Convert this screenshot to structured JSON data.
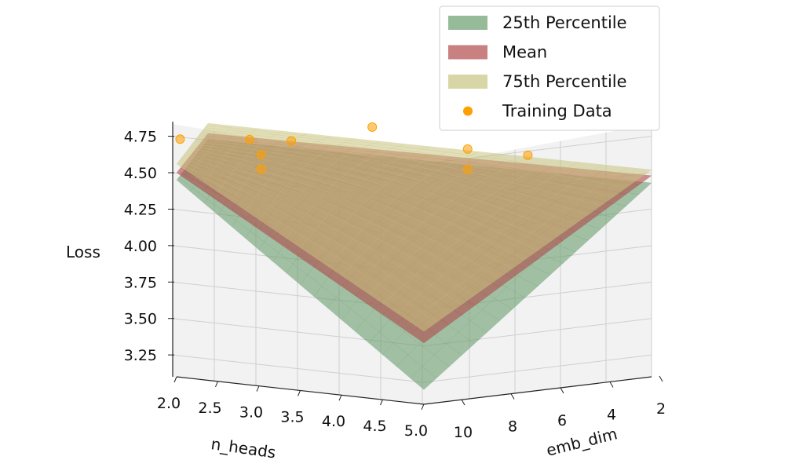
{
  "chart_data": {
    "type": "surface3d",
    "title": "",
    "zlabel": "Loss",
    "xlabel": "n_heads",
    "ylabel": "emb_dim",
    "zticks": [
      "3.25",
      "3.50",
      "3.75",
      "4.00",
      "4.25",
      "4.50",
      "4.75"
    ],
    "xticks": [
      "2.0",
      "2.5",
      "3.0",
      "3.5",
      "4.0",
      "4.5",
      "5.0"
    ],
    "yticks": [
      "10",
      "8",
      "6",
      "4",
      "2"
    ],
    "zlim": [
      3.1,
      4.85
    ],
    "xlim": [
      2.0,
      5.0
    ],
    "ylim": [
      2,
      11
    ],
    "series": [
      {
        "name": "25th Percentile",
        "color": "#6a9e6e",
        "corners": {
          "n2_e2": 4.46,
          "n5_e2": 4.43,
          "n5_e11": 3.2,
          "n2_e11": 4.45
        }
      },
      {
        "name": "Mean",
        "color": "#b04a4a",
        "corners": {
          "n2_e2": 4.5,
          "n5_e2": 4.48,
          "n5_e11": 3.52,
          "n2_e11": 4.5
        }
      },
      {
        "name": "75th Percentile",
        "color": "#c8c480",
        "corners": {
          "n2_e2": 4.57,
          "n5_e2": 4.52,
          "n5_e11": 3.6,
          "n2_e11": 4.56
        }
      }
    ],
    "training_data": {
      "name": "Training Data",
      "color": "#ff9f00",
      "points": [
        {
          "n_heads": 2.0,
          "emb_dim": 10,
          "loss": 4.7
        },
        {
          "n_heads": 2.6,
          "emb_dim": 8,
          "loss": 4.68
        },
        {
          "n_heads": 3.0,
          "emb_dim": 8,
          "loss": 4.7
        },
        {
          "n_heads": 3.5,
          "emb_dim": 6,
          "loss": 4.78
        },
        {
          "n_heads": 2.8,
          "emb_dim": 9,
          "loss": 4.62
        },
        {
          "n_heads": 2.8,
          "emb_dim": 9,
          "loss": 4.52
        },
        {
          "n_heads": 4.0,
          "emb_dim": 4,
          "loss": 4.62
        },
        {
          "n_heads": 4.0,
          "emb_dim": 4,
          "loss": 4.48
        },
        {
          "n_heads": 4.3,
          "emb_dim": 3,
          "loss": 4.58
        }
      ]
    },
    "legend": {
      "position": "top-right",
      "entries": [
        "25th Percentile",
        "Mean",
        "75th Percentile",
        "Training Data"
      ]
    }
  }
}
